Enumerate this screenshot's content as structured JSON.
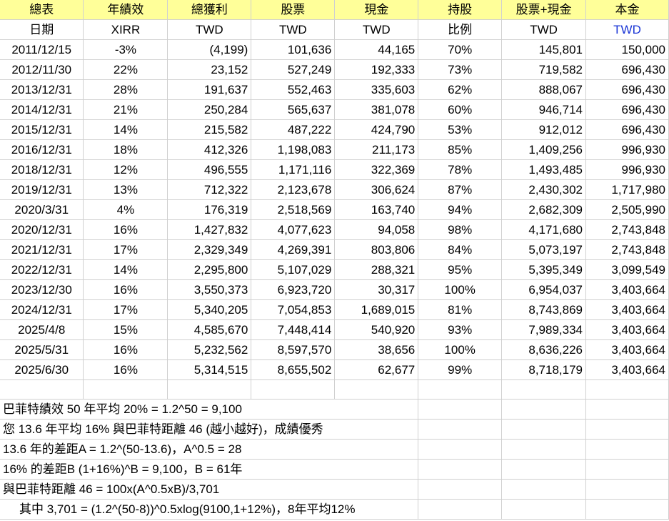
{
  "header_row1": [
    "總表",
    "年績效",
    "總獲利",
    "股票",
    "現金",
    "持股",
    "股票+現金",
    "本金"
  ],
  "header_row2": [
    "日期",
    "XIRR",
    "TWD",
    "TWD",
    "TWD",
    "比例",
    "TWD",
    "TWD"
  ],
  "rows": [
    [
      "2011/12/15",
      "-3%",
      "(4,199)",
      "101,636",
      "44,165",
      "70%",
      "145,801",
      "150,000"
    ],
    [
      "2012/11/30",
      "22%",
      "23,152",
      "527,249",
      "192,333",
      "73%",
      "719,582",
      "696,430"
    ],
    [
      "2013/12/31",
      "28%",
      "191,637",
      "552,463",
      "335,603",
      "62%",
      "888,067",
      "696,430"
    ],
    [
      "2014/12/31",
      "21%",
      "250,284",
      "565,637",
      "381,078",
      "60%",
      "946,714",
      "696,430"
    ],
    [
      "2015/12/31",
      "14%",
      "215,582",
      "487,222",
      "424,790",
      "53%",
      "912,012",
      "696,430"
    ],
    [
      "2016/12/31",
      "18%",
      "412,326",
      "1,198,083",
      "211,173",
      "85%",
      "1,409,256",
      "996,930"
    ],
    [
      "2018/12/31",
      "12%",
      "496,555",
      "1,171,116",
      "322,369",
      "78%",
      "1,493,485",
      "996,930"
    ],
    [
      "2019/12/31",
      "13%",
      "712,322",
      "2,123,678",
      "306,624",
      "87%",
      "2,430,302",
      "1,717,980"
    ],
    [
      "2020/3/31",
      "4%",
      "176,319",
      "2,518,569",
      "163,740",
      "94%",
      "2,682,309",
      "2,505,990"
    ],
    [
      "2020/12/31",
      "16%",
      "1,427,832",
      "4,077,623",
      "94,058",
      "98%",
      "4,171,680",
      "2,743,848"
    ],
    [
      "2021/12/31",
      "17%",
      "2,329,349",
      "4,269,391",
      "803,806",
      "84%",
      "5,073,197",
      "2,743,848"
    ],
    [
      "2022/12/31",
      "14%",
      "2,295,800",
      "5,107,029",
      "288,321",
      "95%",
      "5,395,349",
      "3,099,549"
    ],
    [
      "2023/12/30",
      "16%",
      "3,550,373",
      "6,923,720",
      "30,317",
      "100%",
      "6,954,037",
      "3,403,664"
    ],
    [
      "2024/12/31",
      "17%",
      "5,340,205",
      "7,054,853",
      "1,689,015",
      "81%",
      "8,743,869",
      "3,403,664"
    ],
    [
      "2025/4/8",
      "15%",
      "4,585,670",
      "7,448,414",
      "540,920",
      "93%",
      "7,989,334",
      "3,403,664"
    ],
    [
      "2025/5/31",
      "16%",
      "5,232,562",
      "8,597,570",
      "38,656",
      "100%",
      "8,636,226",
      "3,403,664"
    ],
    [
      "2025/6/30",
      "16%",
      "5,314,515",
      "8,655,502",
      "62,677",
      "99%",
      "8,718,179",
      "3,403,664"
    ]
  ],
  "notes": [
    "巴菲特績效 50 年平均 20% = 1.2^50 = 9,100",
    "您 13.6 年平均 16% 與巴菲特距離 46 (越小越好)，成績優秀",
    "13.6 年的差距A = 1.2^(50-13.6)，A^0.5 = 28",
    "16% 的差距B (1+16%)^B = 9,100，B = 61年",
    "與巴菲特距離 46 = 100x(A^0.5xB)/3,701",
    "其中 3,701 = (1.2^(50-8))^0.5xlog(9100,1+12%)，8年平均12%"
  ],
  "colors": {
    "header_fill": "#ffff99",
    "capital_twd_label": "#1a35d6",
    "gridline": "#d0d0d0"
  }
}
